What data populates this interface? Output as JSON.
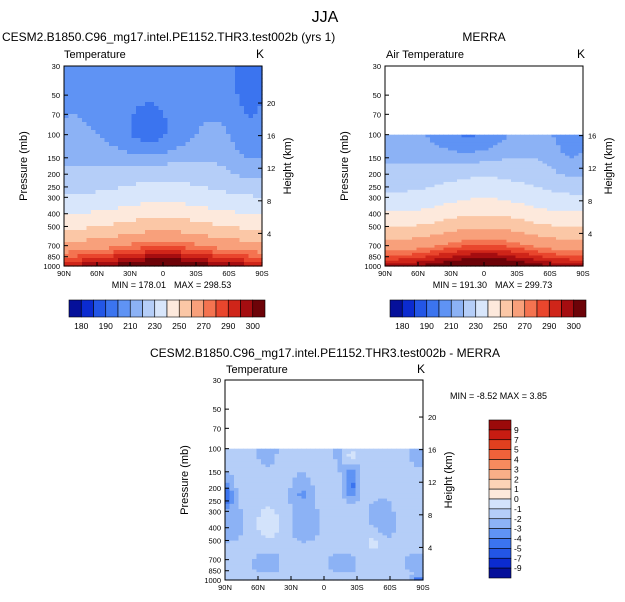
{
  "figure_title": "JJA",
  "chart_data": [
    {
      "type": "contour",
      "title": "CESM2.B1850.C96_mg17.intel.PE1152.THR3.test002b (yrs 1)",
      "subtitle": "Temperature",
      "units": "K",
      "ylabel": "Pressure (mb)",
      "ylabel_right": "Height (km)",
      "x_ticks": [
        "90N",
        "60N",
        "30N",
        "0",
        "30S",
        "60S",
        "90S"
      ],
      "y_ticks": [
        "30",
        "50",
        "70",
        "100",
        "150",
        "200",
        "250",
        "300",
        "400",
        "500",
        "700",
        "850",
        "1000"
      ],
      "y_ticks_right": [
        "20",
        "16",
        "12",
        "8",
        "4"
      ],
      "min_label": "MIN = 178.01",
      "max_label": "MAX = 298.53",
      "min": 178.01,
      "max": 298.53,
      "data_top_mb": 30,
      "colorbar_labels": [
        "180",
        "190",
        "210",
        "230",
        "250",
        "270",
        "290",
        "300"
      ]
    },
    {
      "type": "contour",
      "title": "MERRA",
      "subtitle": "Air Temperature",
      "units": "K",
      "ylabel": "Pressure (mb)",
      "ylabel_right": "Height (km)",
      "x_ticks": [
        "90N",
        "60N",
        "30N",
        "0",
        "30S",
        "60S",
        "90S"
      ],
      "y_ticks": [
        "30",
        "50",
        "70",
        "100",
        "150",
        "200",
        "250",
        "300",
        "400",
        "500",
        "700",
        "850",
        "1000"
      ],
      "y_ticks_right": [
        "16",
        "12",
        "8",
        "4"
      ],
      "min_label": "MIN = 191.30",
      "max_label": "MAX = 299.73",
      "min": 191.3,
      "max": 299.73,
      "data_top_mb": 100,
      "colorbar_labels": [
        "180",
        "190",
        "210",
        "230",
        "250",
        "270",
        "290",
        "300"
      ]
    },
    {
      "type": "contour",
      "title": "CESM2.B1850.C96_mg17.intel.PE1152.THR3.test002b - MERRA",
      "subtitle": "Temperature",
      "units": "K",
      "ylabel": "Pressure (mb)",
      "ylabel_right": "Height (km)",
      "x_ticks": [
        "90N",
        "60N",
        "30N",
        "0",
        "30S",
        "60S",
        "90S"
      ],
      "y_ticks": [
        "30",
        "50",
        "70",
        "100",
        "150",
        "200",
        "250",
        "300",
        "400",
        "500",
        "700",
        "850",
        "1000"
      ],
      "y_ticks_right": [
        "20",
        "16",
        "12",
        "8",
        "4"
      ],
      "minmax_label": "MIN = -8.52  MAX =  3.85",
      "min": -8.52,
      "max": 3.85,
      "data_top_mb": 100,
      "colorbar_labels": [
        "9",
        "7",
        "5",
        "4",
        "3",
        "2",
        "1",
        "0",
        "-1",
        "-2",
        "-3",
        "-4",
        "-5",
        "-7",
        "-9"
      ]
    }
  ],
  "colors": {
    "temp_palette": [
      "#05109a",
      "#0b2bd0",
      "#2356e6",
      "#3b74ef",
      "#5f93f4",
      "#8cb2f5",
      "#b5cef8",
      "#d8e6fb",
      "#fde9dc",
      "#fbc7a6",
      "#f8a07b",
      "#f47350",
      "#e9462d",
      "#cf2519",
      "#a50d10",
      "#6d0308"
    ],
    "diff_palette": [
      "#9b0a0a",
      "#c81c12",
      "#e0401f",
      "#f0623a",
      "#f68b5e",
      "#f9af88",
      "#fcd3b7",
      "#fde9dc",
      "#d3e3fb",
      "#b5cef8",
      "#8cb2f5",
      "#5f93f4",
      "#3b74ef",
      "#2356e6",
      "#0b2bd0",
      "#05109a"
    ]
  }
}
